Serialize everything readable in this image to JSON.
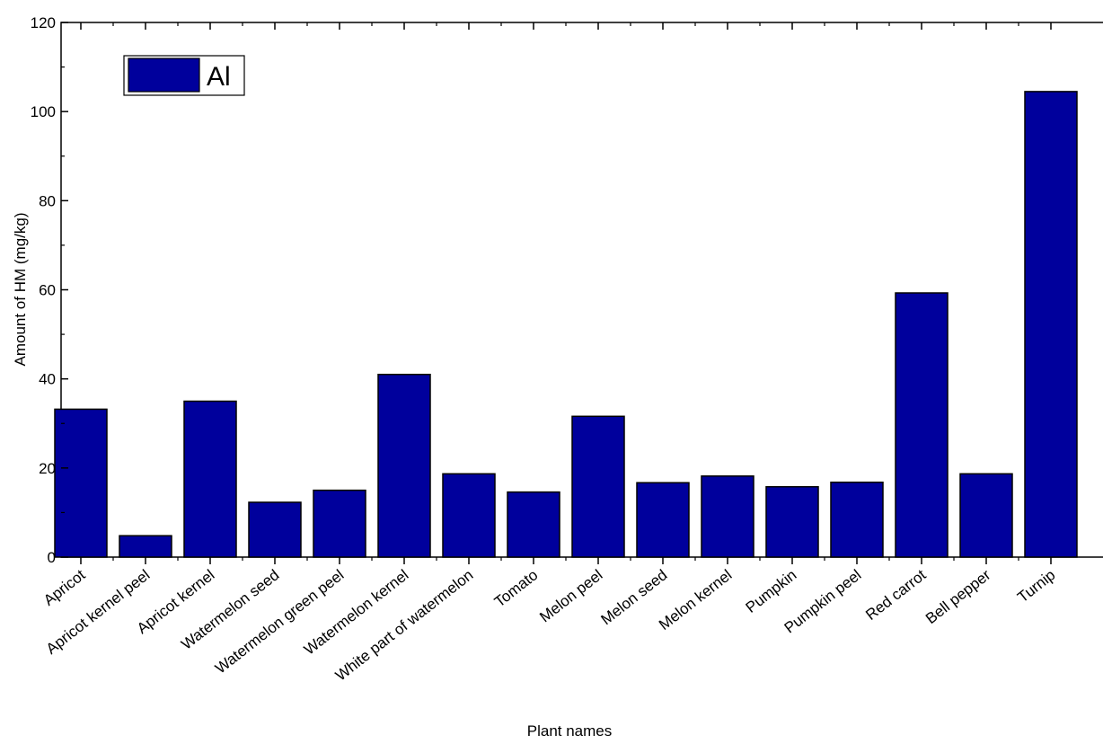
{
  "chart_data": {
    "type": "bar",
    "title": "",
    "xlabel": "Plant names",
    "ylabel": "Amount of HM (mg/kg)",
    "ylim": [
      0,
      120
    ],
    "yticks": [
      0,
      20,
      40,
      60,
      80,
      100,
      120
    ],
    "grid": false,
    "legend_position": "top-left",
    "categories": [
      "Apricot",
      "Apricot kernel peel",
      "Apricot kernel",
      "Watermelon seed",
      "Watermelon green peel",
      "Watermelon kernel",
      "White part of watermelon",
      "Tomato",
      "Melon peel",
      "Melon seed",
      "Melon kernel",
      "Pumpkin",
      "Pumpkin peel",
      "Red carrot",
      "Bell pepper",
      "Turnip"
    ],
    "series": [
      {
        "name": "Al",
        "color": "#00009c",
        "values": [
          33.2,
          4.8,
          35.0,
          12.3,
          15.0,
          41.0,
          18.7,
          14.6,
          31.6,
          16.7,
          18.2,
          15.8,
          16.8,
          59.3,
          18.7,
          104.5
        ]
      }
    ]
  }
}
